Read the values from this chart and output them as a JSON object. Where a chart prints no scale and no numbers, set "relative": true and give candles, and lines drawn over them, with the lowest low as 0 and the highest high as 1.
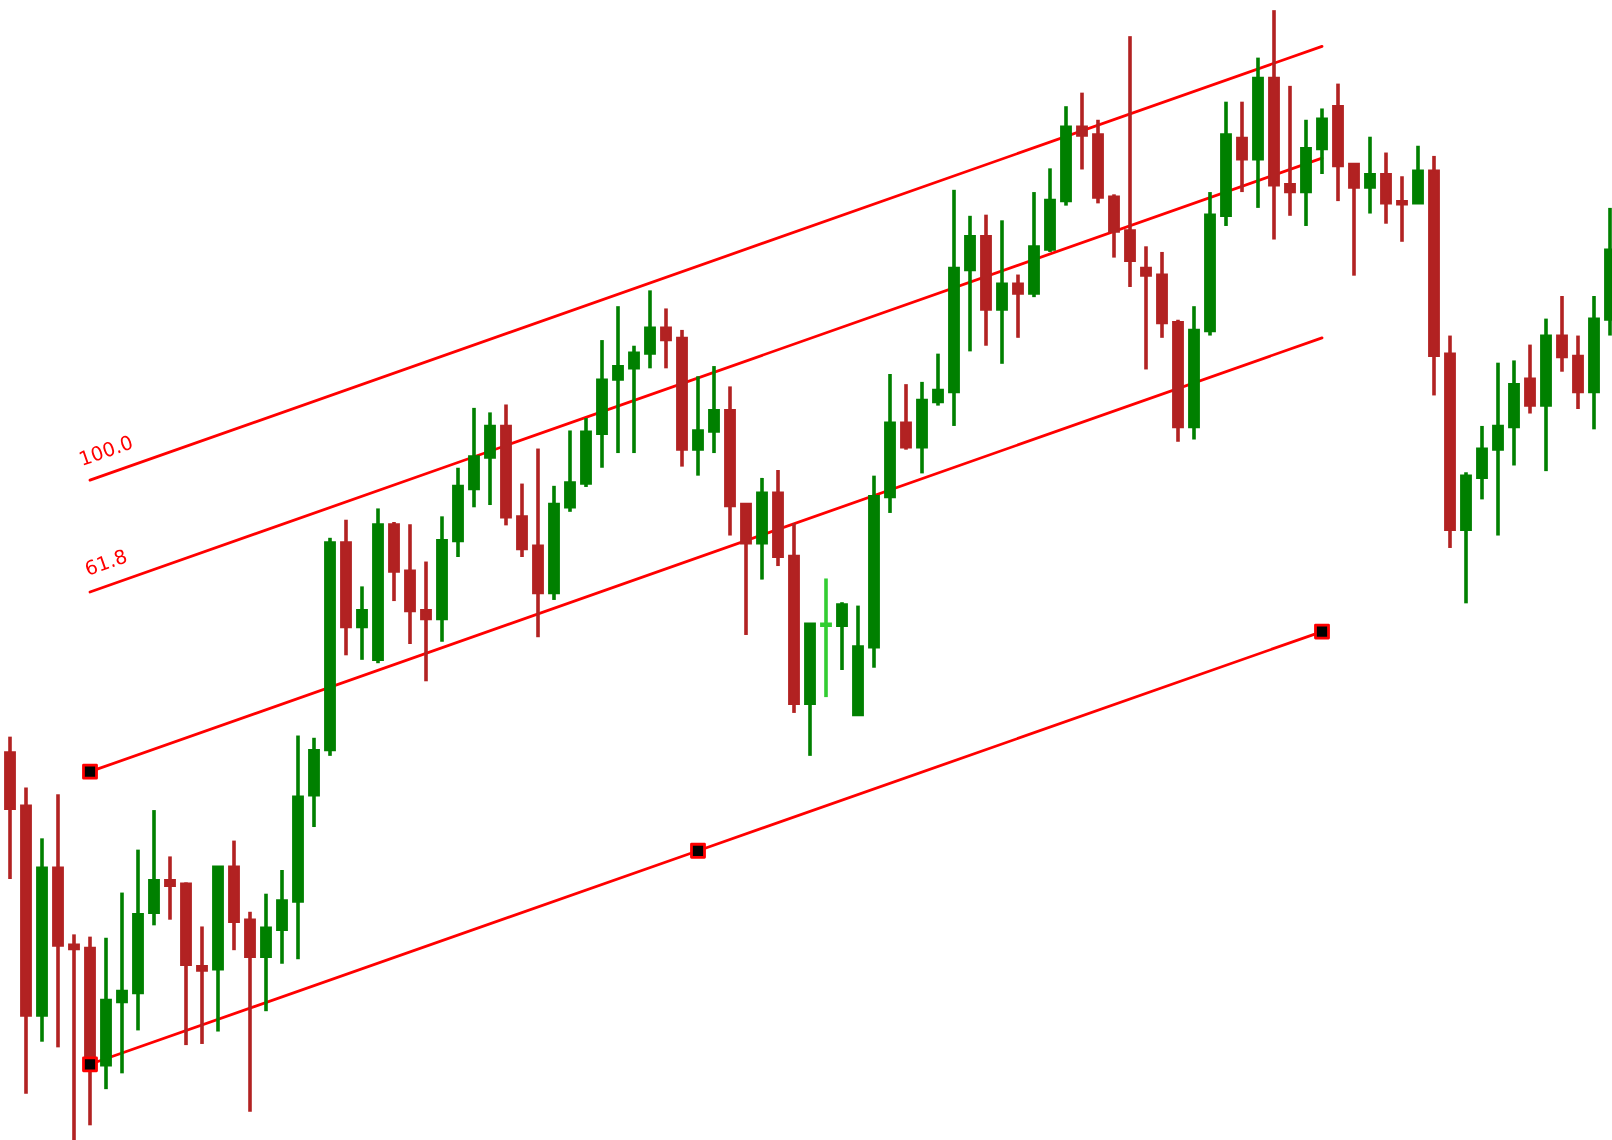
{
  "chart_data": {
    "type": "candlestick",
    "relative": true,
    "categories": [
      null,
      null,
      null,
      null,
      null,
      null,
      null,
      null,
      null,
      null,
      null,
      null,
      null,
      null,
      null,
      null,
      null,
      null,
      null,
      null,
      null,
      null,
      null,
      null,
      null,
      null,
      null,
      null,
      null,
      null,
      null,
      null,
      null,
      null,
      null,
      null,
      null,
      null,
      null,
      null,
      null,
      null,
      null,
      null,
      null,
      null,
      null,
      null,
      null,
      null,
      null,
      null,
      null,
      null,
      null,
      null,
      null,
      null,
      null,
      null,
      null,
      null,
      null,
      null,
      null,
      null,
      null,
      null,
      null,
      null,
      null,
      null,
      null,
      null,
      null,
      null,
      null,
      null,
      null,
      null,
      null,
      null,
      null,
      null,
      null,
      null,
      null,
      null,
      null,
      null,
      null,
      null,
      null,
      null,
      null,
      null,
      null,
      null,
      null,
      null,
      null
    ],
    "ohlc": [
      [
        0.343,
        0.357,
        0.231,
        0.293
      ],
      [
        0.296,
        0.312,
        0.041,
        0.11
      ],
      [
        0.11,
        0.267,
        0.087,
        0.241
      ],
      [
        0.241,
        0.306,
        0.082,
        0.172
      ],
      [
        0.173,
        0.182,
        0.0,
        0.169
      ],
      [
        0.17,
        0.18,
        0.013,
        0.066
      ],
      [
        0.066,
        0.179,
        0.045,
        0.124
      ],
      [
        0.122,
        0.219,
        0.059,
        0.132
      ],
      [
        0.13,
        0.257,
        0.097,
        0.2
      ],
      [
        0.201,
        0.292,
        0.19,
        0.23
      ],
      [
        0.23,
        0.251,
        0.195,
        0.225
      ],
      [
        0.227,
        0.228,
        0.084,
        0.155
      ],
      [
        0.154,
        0.189,
        0.085,
        0.15
      ],
      [
        0.151,
        0.242,
        0.096,
        0.242
      ],
      [
        0.242,
        0.265,
        0.168,
        0.193
      ],
      [
        0.195,
        0.202,
        0.025,
        0.162
      ],
      [
        0.162,
        0.218,
        0.114,
        0.188
      ],
      [
        0.186,
        0.239,
        0.156,
        0.212
      ],
      [
        0.211,
        0.358,
        0.16,
        0.304
      ],
      [
        0.305,
        0.356,
        0.277,
        0.345
      ],
      [
        0.345,
        0.533,
        0.34,
        0.529
      ],
      [
        0.529,
        0.549,
        0.429,
        0.454
      ],
      [
        0.454,
        0.49,
        0.425,
        0.469
      ],
      [
        0.425,
        0.559,
        0.422,
        0.545
      ],
      [
        0.545,
        0.547,
        0.477,
        0.503
      ],
      [
        0.504,
        0.545,
        0.439,
        0.468
      ],
      [
        0.469,
        0.512,
        0.406,
        0.461
      ],
      [
        0.461,
        0.552,
        0.441,
        0.531
      ],
      [
        0.53,
        0.595,
        0.516,
        0.579
      ],
      [
        0.576,
        0.648,
        0.56,
        0.605
      ],
      [
        0.604,
        0.644,
        0.562,
        0.632
      ],
      [
        0.632,
        0.651,
        0.544,
        0.551
      ],
      [
        0.552,
        0.581,
        0.516,
        0.523
      ],
      [
        0.526,
        0.612,
        0.445,
        0.484
      ],
      [
        0.484,
        0.579,
        0.478,
        0.563
      ],
      [
        0.56,
        0.628,
        0.556,
        0.582
      ],
      [
        0.581,
        0.639,
        0.578,
        0.627
      ],
      [
        0.625,
        0.708,
        0.595,
        0.673
      ],
      [
        0.673,
        0.738,
        0.608,
        0.685
      ],
      [
        0.683,
        0.703,
        0.608,
        0.697
      ],
      [
        0.696,
        0.752,
        0.683,
        0.719
      ],
      [
        0.719,
        0.736,
        0.683,
        0.708
      ],
      [
        0.71,
        0.717,
        0.596,
        0.611
      ],
      [
        0.611,
        0.676,
        0.588,
        0.628
      ],
      [
        0.627,
        0.685,
        0.608,
        0.646
      ],
      [
        0.646,
        0.667,
        0.535,
        0.561
      ],
      [
        0.563,
        0.563,
        0.447,
        0.528
      ],
      [
        0.528,
        0.586,
        0.496,
        0.573
      ],
      [
        0.573,
        0.593,
        0.508,
        0.516
      ],
      [
        0.517,
        0.546,
        0.378,
        0.386
      ],
      [
        0.386,
        0.457,
        0.34,
        0.457
      ],
      [
        0.455,
        0.497,
        0.392,
        0.457
      ],
      [
        0.455,
        0.476,
        0.416,
        0.474
      ],
      [
        0.376,
        0.473,
        0.376,
        0.437
      ],
      [
        0.436,
        0.588,
        0.418,
        0.57
      ],
      [
        0.569,
        0.678,
        0.555,
        0.635
      ],
      [
        0.635,
        0.669,
        0.611,
        0.613
      ],
      [
        0.613,
        0.671,
        0.59,
        0.655
      ],
      [
        0.653,
        0.696,
        0.65,
        0.664
      ],
      [
        0.662,
        0.841,
        0.632,
        0.772
      ],
      [
        0.77,
        0.818,
        0.698,
        0.8
      ],
      [
        0.8,
        0.819,
        0.703,
        0.735
      ],
      [
        0.735,
        0.814,
        0.687,
        0.758
      ],
      [
        0.758,
        0.766,
        0.71,
        0.749
      ],
      [
        0.749,
        0.839,
        0.746,
        0.791
      ],
      [
        0.788,
        0.86,
        0.786,
        0.832
      ],
      [
        0.831,
        0.915,
        0.827,
        0.897
      ],
      [
        0.897,
        0.927,
        0.859,
        0.889
      ],
      [
        0.89,
        0.903,
        0.829,
        0.834
      ],
      [
        0.835,
        0.837,
        0.781,
        0.804
      ],
      [
        0.805,
        0.977,
        0.755,
        0.778
      ],
      [
        0.772,
        0.791,
        0.682,
        0.765
      ],
      [
        0.766,
        0.786,
        0.71,
        0.723
      ],
      [
        0.724,
        0.726,
        0.618,
        0.631
      ],
      [
        0.631,
        0.738,
        0.62,
        0.717
      ],
      [
        0.716,
        0.839,
        0.712,
        0.819
      ],
      [
        0.818,
        0.919,
        0.809,
        0.89
      ],
      [
        0.887,
        0.919,
        0.839,
        0.868
      ],
      [
        0.868,
        0.958,
        0.825,
        0.94
      ],
      [
        0.94,
        1.0,
        0.797,
        0.845
      ],
      [
        0.846,
        0.933,
        0.818,
        0.839
      ],
      [
        0.839,
        0.903,
        0.809,
        0.878
      ],
      [
        0.877,
        0.913,
        0.855,
        0.904
      ],
      [
        0.915,
        0.935,
        0.831,
        0.862
      ],
      [
        0.864,
        0.864,
        0.765,
        0.843
      ],
      [
        0.843,
        0.888,
        0.82,
        0.855
      ],
      [
        0.855,
        0.874,
        0.811,
        0.829
      ],
      [
        0.831,
        0.853,
        0.795,
        0.828
      ],
      [
        0.829,
        0.88,
        0.829,
        0.858
      ],
      [
        0.858,
        0.871,
        0.659,
        0.694
      ],
      [
        0.696,
        0.712,
        0.524,
        0.54
      ],
      [
        0.54,
        0.591,
        0.475,
        0.588
      ],
      [
        0.586,
        0.632,
        0.567,
        0.612
      ],
      [
        0.611,
        0.688,
        0.535,
        0.632
      ],
      [
        0.631,
        0.69,
        0.597,
        0.669
      ],
      [
        0.674,
        0.704,
        0.643,
        0.65
      ],
      [
        0.65,
        0.727,
        0.592,
        0.712
      ],
      [
        0.712,
        0.747,
        0.68,
        0.693
      ],
      [
        0.694,
        0.712,
        0.647,
        0.662
      ],
      [
        0.662,
        0.747,
        0.629,
        0.727
      ],
      [
        0.726,
        0.825,
        0.712,
        0.788
      ]
    ],
    "colors": [
      "#b22222",
      "#b22222",
      "#008000",
      "#b22222",
      "#b22222",
      "#b22222",
      "#008000",
      "#008000",
      "#008000",
      "#008000",
      "#b22222",
      "#b22222",
      "#b22222",
      "#008000",
      "#b22222",
      "#b22222",
      "#008000",
      "#008000",
      "#008000",
      "#008000",
      "#008000",
      "#b22222",
      "#008000",
      "#008000",
      "#b22222",
      "#b22222",
      "#b22222",
      "#008000",
      "#008000",
      "#008000",
      "#008000",
      "#b22222",
      "#b22222",
      "#b22222",
      "#008000",
      "#008000",
      "#008000",
      "#008000",
      "#008000",
      "#008000",
      "#008000",
      "#b22222",
      "#b22222",
      "#008000",
      "#008000",
      "#b22222",
      "#b22222",
      "#008000",
      "#b22222",
      "#b22222",
      "#008000",
      "#32cd32",
      "#008000",
      "#008000",
      "#008000",
      "#008000",
      "#b22222",
      "#008000",
      "#008000",
      "#008000",
      "#008000",
      "#b22222",
      "#008000",
      "#b22222",
      "#008000",
      "#008000",
      "#008000",
      "#b22222",
      "#b22222",
      "#b22222",
      "#b22222",
      "#b22222",
      "#b22222",
      "#b22222",
      "#008000",
      "#008000",
      "#008000",
      "#b22222",
      "#008000",
      "#b22222",
      "#b22222",
      "#008000",
      "#008000",
      "#b22222",
      "#b22222",
      "#008000",
      "#b22222",
      "#b22222",
      "#008000",
      "#b22222",
      "#b22222",
      "#008000",
      "#008000",
      "#008000",
      "#008000",
      "#b22222",
      "#008000",
      "#b22222",
      "#b22222",
      "#008000",
      "#008000"
    ],
    "series": [
      {
        "type": "line",
        "color": "#ff0000",
        "values": [
          null,
          null,
          null,
          null,
          null,
          0.584,
          null,
          null,
          null,
          null,
          null,
          null,
          null,
          null,
          null,
          null,
          null,
          null,
          null,
          null,
          null,
          null,
          null,
          null,
          null,
          null,
          null,
          null,
          null,
          null,
          null,
          null,
          null,
          null,
          null,
          null,
          null,
          null,
          null,
          null,
          null,
          null,
          null,
          null,
          null,
          null,
          null,
          null,
          null,
          null,
          null,
          null,
          null,
          null,
          null,
          null,
          null,
          null,
          null,
          null,
          null,
          null,
          null,
          null,
          null,
          null,
          null,
          null,
          null,
          null,
          null,
          null,
          null,
          null,
          null,
          null,
          null,
          null,
          null,
          null,
          null,
          null,
          0.968,
          null,
          null,
          null,
          null,
          null,
          null,
          null,
          null,
          null,
          null,
          null,
          null,
          null,
          null,
          null,
          null,
          null,
          null
        ]
      },
      {
        "type": "line",
        "color": "#ff0000",
        "values": [
          null,
          null,
          null,
          null,
          null,
          0.485,
          null,
          null,
          null,
          null,
          null,
          null,
          null,
          null,
          null,
          null,
          null,
          null,
          null,
          null,
          null,
          null,
          null,
          null,
          null,
          null,
          null,
          null,
          null,
          null,
          null,
          null,
          null,
          null,
          null,
          null,
          null,
          null,
          null,
          null,
          null,
          null,
          null,
          null,
          null,
          null,
          null,
          null,
          null,
          null,
          null,
          null,
          null,
          null,
          null,
          null,
          null,
          null,
          null,
          null,
          null,
          null,
          null,
          null,
          null,
          null,
          null,
          null,
          null,
          null,
          null,
          null,
          null,
          null,
          null,
          null,
          null,
          null,
          null,
          null,
          null,
          null,
          0.869,
          null,
          null,
          null,
          null,
          null,
          null,
          null,
          null,
          null,
          null,
          null,
          null,
          null,
          null,
          null,
          null,
          null,
          null
        ]
      },
      {
        "type": "line",
        "color": "#ff0000",
        "values": [
          null,
          null,
          null,
          null,
          null,
          0.326,
          null,
          null,
          null,
          null,
          null,
          null,
          null,
          null,
          null,
          null,
          null,
          null,
          null,
          null,
          null,
          null,
          null,
          null,
          null,
          null,
          null,
          null,
          null,
          null,
          null,
          null,
          null,
          null,
          null,
          null,
          null,
          null,
          null,
          null,
          null,
          null,
          null,
          null,
          null,
          null,
          null,
          null,
          null,
          null,
          null,
          null,
          null,
          null,
          null,
          null,
          null,
          null,
          null,
          null,
          null,
          null,
          null,
          null,
          null,
          null,
          null,
          null,
          null,
          null,
          null,
          null,
          null,
          null,
          null,
          null,
          null,
          null,
          null,
          null,
          null,
          null,
          0.71,
          null,
          null,
          null,
          null,
          null,
          null,
          null,
          null,
          null,
          null,
          null,
          null,
          null,
          null,
          null,
          null,
          null,
          null
        ]
      },
      {
        "type": "line",
        "color": "#ff0000",
        "marker": "square",
        "values": [
          null,
          null,
          null,
          null,
          null,
          0.067,
          null,
          null,
          null,
          null,
          null,
          null,
          null,
          null,
          null,
          null,
          null,
          null,
          null,
          null,
          null,
          null,
          null,
          null,
          null,
          null,
          null,
          null,
          null,
          null,
          null,
          null,
          null,
          null,
          null,
          null,
          null,
          null,
          null,
          null,
          null,
          null,
          null,
          0.256,
          null,
          null,
          null,
          null,
          null,
          null,
          null,
          null,
          null,
          null,
          null,
          null,
          null,
          null,
          null,
          null,
          null,
          null,
          null,
          null,
          null,
          null,
          null,
          null,
          null,
          null,
          null,
          null,
          null,
          null,
          null,
          null,
          null,
          null,
          null,
          null,
          null,
          null,
          0.45,
          null,
          null,
          null,
          null,
          null,
          null,
          null,
          null,
          null,
          null,
          null,
          null,
          null,
          null,
          null,
          null,
          null,
          null
        ]
      },
      {
        "type": "scatter",
        "color": "#000000",
        "marker": "square",
        "values": [
          null,
          null,
          null,
          null,
          null,
          0.326,
          null,
          null,
          null,
          null,
          null,
          null,
          null,
          null,
          null,
          null,
          null,
          null,
          null,
          null,
          null,
          null,
          null,
          null,
          null,
          null,
          null,
          null,
          null,
          null,
          null,
          null,
          null,
          null,
          null,
          null,
          null,
          null,
          null,
          null,
          null,
          null,
          null,
          null,
          null,
          null,
          null,
          null,
          null,
          null,
          null,
          null,
          null,
          null,
          null,
          null,
          null,
          null,
          null,
          null,
          null,
          null,
          null,
          null,
          null,
          null,
          null,
          null,
          null,
          null,
          null,
          null,
          null,
          null,
          null,
          null,
          null,
          null,
          null,
          null,
          null,
          null,
          null,
          null,
          null,
          null,
          null,
          null,
          null,
          null,
          null,
          null,
          null,
          null,
          null,
          null,
          null,
          null,
          null,
          null,
          null
        ]
      }
    ],
    "annotations": [
      "100.0",
      "61.8"
    ]
  }
}
